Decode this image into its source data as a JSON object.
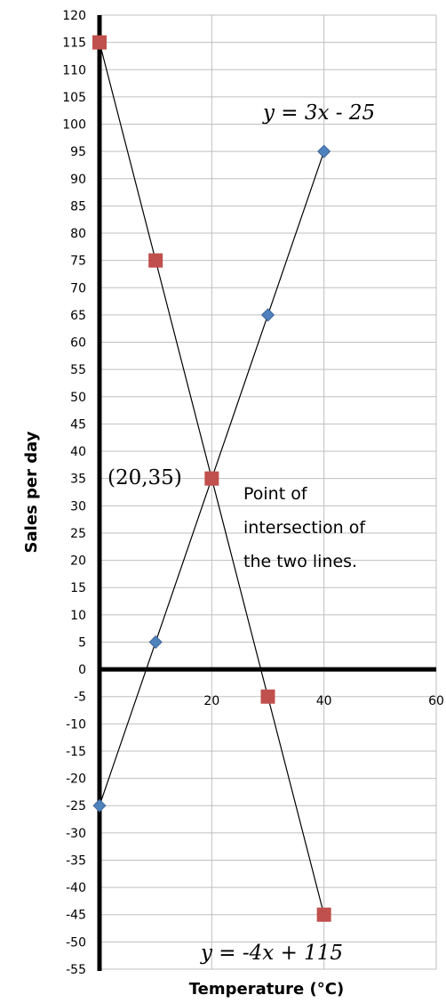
{
  "chart_data": {
    "type": "line",
    "xlabel": "Temperature (°C)",
    "ylabel": "Sales per day",
    "xlim": [
      0,
      60
    ],
    "ylim": [
      -55,
      120
    ],
    "x_ticks": [
      20,
      40,
      60
    ],
    "y_ticks": [
      120,
      115,
      110,
      105,
      100,
      95,
      90,
      85,
      80,
      75,
      70,
      65,
      60,
      55,
      50,
      45,
      40,
      35,
      30,
      25,
      20,
      15,
      10,
      5,
      0,
      -5,
      -10,
      -15,
      -20,
      -25,
      -30,
      -35,
      -40,
      -45,
      -50,
      -55
    ],
    "grid": true,
    "series": [
      {
        "name": "y = 3x - 25",
        "marker": "diamond",
        "color": "#4f81bd",
        "x": [
          0,
          10,
          20,
          30,
          40
        ],
        "y": [
          -25,
          5,
          35,
          65,
          95
        ]
      },
      {
        "name": "y = -4x + 115",
        "marker": "square",
        "color": "#c0504d",
        "x": [
          0,
          10,
          20,
          30,
          40
        ],
        "y": [
          115,
          75,
          35,
          -5,
          -45
        ]
      }
    ],
    "annotations": {
      "line1_label": "y = 3x - 25",
      "line2_label": "y = -4x + 115",
      "intersection_label": "(20,35)",
      "note_lines": [
        "Point of",
        "intersection of",
        "the two lines."
      ]
    }
  }
}
